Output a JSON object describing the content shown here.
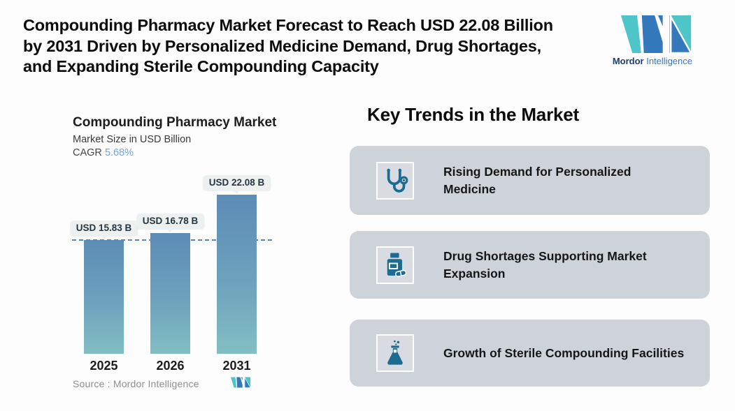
{
  "header": {
    "title_lines": [
      "Compounding Pharmacy Market Forecast to Reach USD 22.08 Billion",
      "by 2031 Driven by Personalized Medicine Demand, Drug Shortages,",
      "and Expanding Sterile Compounding Capacity"
    ]
  },
  "logo": {
    "brand_bold": "Mordor",
    "brand_light": "Intelligence",
    "teal": "#4ec5c9",
    "blue": "#3379bc"
  },
  "chart": {
    "title": "Compounding Pharmacy Market",
    "subtitle": "Market Size in USD Billion",
    "cagr_label": "CAGR",
    "cagr_value": "5.68%",
    "source": "Source :  Mordor Intelligence",
    "bars": [
      {
        "year": "2025",
        "label": "USD 15.83 B"
      },
      {
        "year": "2026",
        "label": "USD 16.78 B"
      },
      {
        "year": "2031",
        "label": "USD 22.08 B"
      }
    ]
  },
  "chart_data": {
    "type": "bar",
    "title": "Compounding Pharmacy Market",
    "ylabel": "Market Size in USD Billion",
    "categories": [
      "2025",
      "2026",
      "2031"
    ],
    "values": [
      15.83,
      16.78,
      22.08
    ],
    "data_labels": [
      "USD 15.83 B",
      "USD 16.78 B",
      "USD 22.08 B"
    ],
    "cagr": "5.68%",
    "reference_line": 15.83,
    "ylim": [
      0,
      22.08
    ],
    "grid": false,
    "legend": false,
    "bar_color_top": "#5d8cb5",
    "bar_color_bottom": "#83bec3",
    "reference_line_color": "#5687be"
  },
  "trends": {
    "heading": "Key Trends in the Market",
    "accent": "#1d6b90",
    "card_bg": "#ced3da",
    "cards": [
      {
        "icon": "stethoscope-icon",
        "text": "Rising Demand for Personalized Medicine"
      },
      {
        "icon": "pill-bottle-icon",
        "text": "Drug Shortages Supporting Market Expansion"
      },
      {
        "icon": "flask-icon",
        "text": "Growth of Sterile Compounding Facilities"
      }
    ]
  }
}
